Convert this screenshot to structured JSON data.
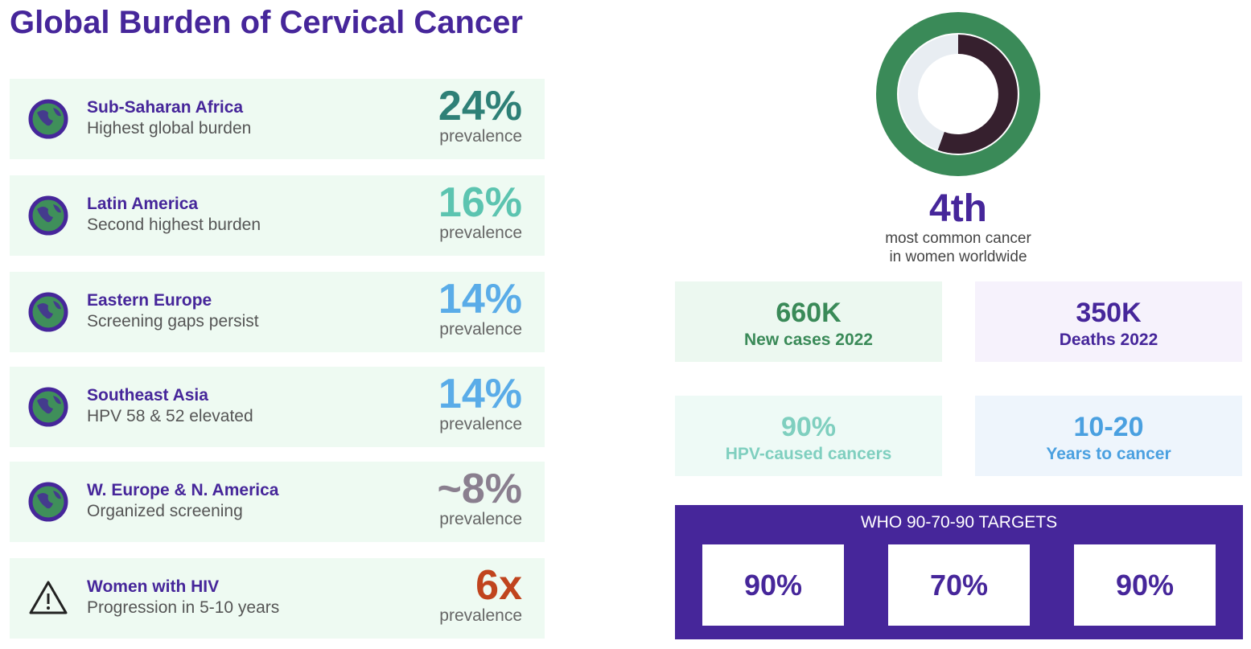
{
  "header": {
    "title": "Global Burden of Cervical Cancer"
  },
  "regions": [
    {
      "name": "Sub-Saharan Africa",
      "description": "Highest global burden",
      "value": "24%",
      "unit": "prevalence"
    },
    {
      "name": "Latin America",
      "description": "Second highest burden",
      "value": "16%",
      "unit": "prevalence"
    },
    {
      "name": "Eastern Europe",
      "description": "Screening gaps persist",
      "value": "14%",
      "unit": "prevalence"
    },
    {
      "name": "Southeast Asia",
      "description": "HPV 58 & 52 elevated",
      "value": "14%",
      "unit": "prevalence"
    },
    {
      "name": "W. Europe & N. America",
      "description": "Organized screening",
      "value": "~8%",
      "unit": "prevalence"
    },
    {
      "name": "Women with HIV",
      "description": "Progression in 5-10 years",
      "value": "6x",
      "unit": "prevalence"
    }
  ],
  "rank": {
    "value": "4th",
    "lines": [
      "most common cancer",
      "in women worldwide"
    ]
  },
  "stats": [
    {
      "value": "660K",
      "label": "New cases 2022"
    },
    {
      "value": "350K",
      "label": "Deaths 2022"
    },
    {
      "value": "90%",
      "label": "HPV-caused cancers"
    },
    {
      "value": "10-20",
      "label": "Years to cancer"
    }
  ],
  "targets": {
    "title": "WHO 90-70-90 TARGETS",
    "values": [
      "90%",
      "70%",
      "90%"
    ]
  }
}
